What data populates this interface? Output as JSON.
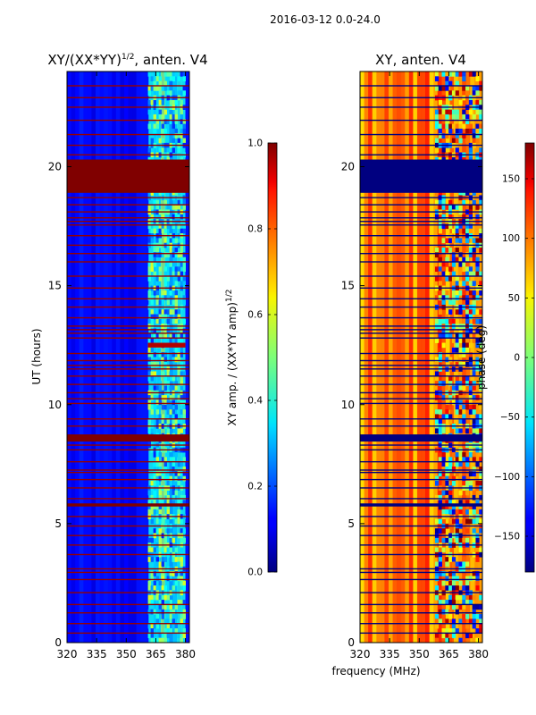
{
  "figure_title": "2016-03-12 0.0-24.0",
  "shared_xlabel": "frequency (MHz)",
  "chart_data": [
    {
      "type": "heatmap",
      "title": "XY/(XX*YY)",
      "title_exponent": "1/2",
      "title_suffix": ", anten. V4",
      "xlabel": "",
      "ylabel": "UT (hours)",
      "xlim": [
        320,
        382
      ],
      "ylim": [
        0,
        24
      ],
      "xticks": [
        320,
        335,
        350,
        365,
        380
      ],
      "yticks": [
        0,
        5,
        10,
        15,
        20
      ],
      "colorbar": {
        "label": "XY amp. / (XX*YY amp)",
        "label_exponent": "1/2",
        "range": [
          0.0,
          1.0
        ],
        "ticks": [
          0.0,
          0.2,
          0.4,
          0.6,
          0.8,
          1.0
        ],
        "tick_labels": [
          "0.0",
          "0.2",
          "0.4",
          "0.6",
          "0.8",
          "1.0"
        ],
        "colormap": "jet"
      },
      "background_value": 0.12,
      "saturated_bands": [
        {
          "ut_start": 18.9,
          "ut_end": 20.3,
          "value": 1.0
        },
        {
          "ut_start": 8.45,
          "ut_end": 8.75,
          "value": 1.0
        },
        {
          "ut_start": 5.72,
          "ut_end": 5.85,
          "value": 1.0
        },
        {
          "ut_start": 12.4,
          "ut_end": 12.6,
          "freq_start": 361,
          "freq_end": 380,
          "value": 0.95
        }
      ],
      "rfi_band_mhz": [
        361,
        380
      ],
      "rfi_value_range": [
        0.2,
        0.6
      ]
    },
    {
      "type": "heatmap",
      "title": "XY, anten. V4",
      "xlabel": "frequency (MHz)",
      "ylabel": "",
      "xlim": [
        320,
        382
      ],
      "ylim": [
        0,
        24
      ],
      "xticks": [
        320,
        335,
        350,
        365,
        380
      ],
      "yticks": [
        0,
        5,
        10,
        15,
        20
      ],
      "colorbar": {
        "label": "phase (deg)",
        "range": [
          -180,
          180
        ],
        "ticks": [
          150,
          100,
          50,
          0,
          -50,
          -100,
          -150
        ],
        "tick_labels": [
          "150",
          "100",
          "50",
          "0",
          "−50",
          "−100",
          "−150"
        ],
        "colormap": "jet"
      },
      "background_phase_range": [
        50,
        130
      ],
      "saturated_bands": [
        {
          "ut_start": 18.9,
          "ut_end": 20.3,
          "value": -180
        },
        {
          "ut_start": 8.45,
          "ut_end": 8.75,
          "value": -180
        },
        {
          "ut_start": 5.72,
          "ut_end": 5.85,
          "value": -180
        }
      ],
      "rfi_band_mhz": [
        358,
        382
      ]
    }
  ],
  "rfi_lines_ut": [
    0.4,
    0.8,
    1.25,
    1.6,
    2.1,
    2.65,
    2.95,
    3.1,
    3.7,
    4.1,
    4.5,
    4.9,
    5.3,
    6.05,
    6.5,
    6.85,
    7.15,
    7.25,
    7.6,
    8.1,
    8.3,
    9.1,
    9.4,
    10.05,
    10.25,
    10.5,
    10.85,
    11.2,
    11.5,
    11.65,
    11.85,
    12.15,
    12.8,
    13.0,
    13.15,
    13.3,
    13.65,
    14.1,
    14.45,
    14.9,
    15.4,
    16.0,
    16.35,
    16.7,
    17.1,
    17.55,
    17.7,
    17.85,
    18.1,
    18.4,
    18.7,
    20.5,
    20.9,
    21.35,
    21.95,
    22.5,
    22.9,
    23.4
  ]
}
